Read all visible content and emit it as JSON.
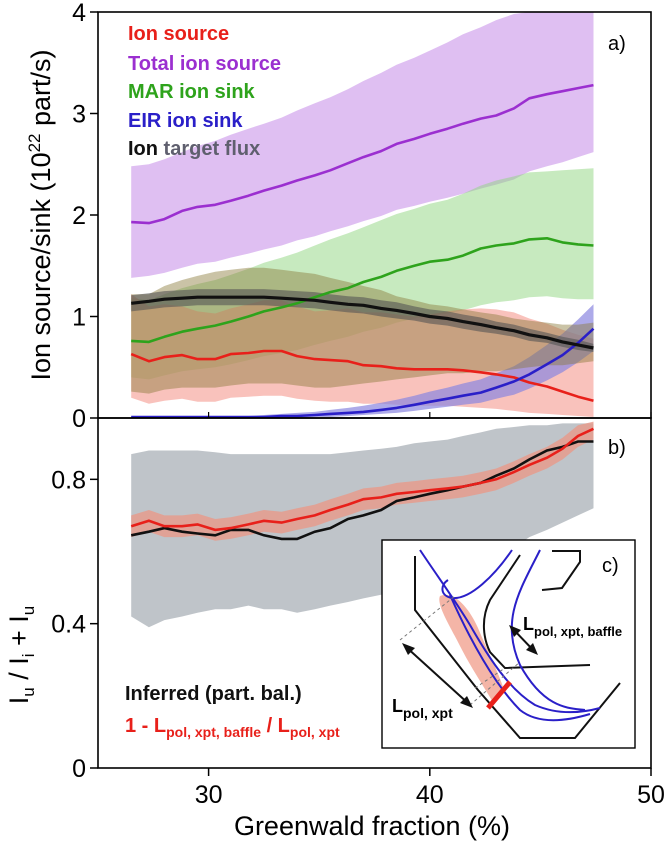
{
  "colors": {
    "ion_source": "#e8201a",
    "total_ion_source": "#9b2fd0",
    "mar_ion_sink": "#2ea31c",
    "eir_ion_sink": "#2a1fc8",
    "ion_target_flux": "#111111",
    "inferred_band": "#b4bac0",
    "model_band": "#e89a8a"
  },
  "xaxis": {
    "label": "Greenwald fraction (%)",
    "ticks": [
      "30",
      "40",
      "50"
    ]
  },
  "panel_a": {
    "tag": "a)",
    "ylabel_main": "Ion source/sink (10",
    "ylabel_exp": "22",
    "ylabel_tail": " part/s)",
    "yticks": [
      "0",
      "1",
      "2",
      "3",
      "4"
    ],
    "legend": [
      {
        "key": "ion_source",
        "label": "Ion source"
      },
      {
        "key": "total_ion_source",
        "label": "Total ion source"
      },
      {
        "key": "mar_ion_sink",
        "label": "MAR ion sink"
      },
      {
        "key": "eir_ion_sink",
        "label": "EIR ion sink"
      }
    ],
    "legend_last_a": "Ion ",
    "legend_last_b": "target flux"
  },
  "panel_b": {
    "tag": "b)",
    "ylabel": {
      "i1": "I",
      "s1": "u",
      "t1": " / I",
      "s2": "i",
      "t2": " + I",
      "s3": "u"
    },
    "yticks": [
      "0",
      "0.4",
      "0.8"
    ],
    "legend_inferred": "Inferred (part. bal.)",
    "legend_model": {
      "a": "1 - L",
      "b": "pol, xpt, baffle",
      "c": " / L",
      "d": "pol, xpt"
    }
  },
  "panel_c": {
    "tag": "c)",
    "label_baffle": {
      "main": "L",
      "sub": "pol, xpt, baffle"
    },
    "label_xpt": {
      "main": "L",
      "sub": "pol, xpt"
    }
  },
  "chart_data": [
    {
      "type": "line",
      "panel": "a)",
      "xlabel": "Greenwald fraction (%)",
      "ylabel": "Ion source/sink (10^22 part/s)",
      "xlim": [
        25,
        50
      ],
      "ylim": [
        0,
        4
      ],
      "x": [
        26.5,
        27.3,
        28,
        28.8,
        29.5,
        30.3,
        31,
        31.8,
        32.5,
        33.3,
        34,
        34.8,
        35.5,
        36.3,
        37,
        37.8,
        38.5,
        39.3,
        40,
        40.8,
        41.5,
        42.3,
        43,
        43.8,
        44.5,
        45.3,
        46,
        46.7,
        47.4
      ],
      "series": [
        {
          "name": "Ion source",
          "key": "ion_source",
          "values": [
            0.63,
            0.56,
            0.6,
            0.62,
            0.58,
            0.58,
            0.63,
            0.64,
            0.66,
            0.66,
            0.61,
            0.58,
            0.57,
            0.56,
            0.52,
            0.51,
            0.49,
            0.48,
            0.48,
            0.48,
            0.47,
            0.45,
            0.43,
            0.4,
            0.35,
            0.31,
            0.26,
            0.21,
            0.17
          ],
          "band_lower": [
            0.2,
            0.14,
            0.17,
            0.19,
            0.16,
            0.16,
            0.2,
            0.21,
            0.22,
            0.22,
            0.19,
            0.17,
            0.16,
            0.16,
            0.14,
            0.14,
            0.13,
            0.12,
            0.12,
            0.12,
            0.11,
            0.1,
            0.09,
            0.07,
            0.05,
            0.04,
            0.03,
            0.02,
            0.01
          ],
          "band_upper": [
            1.22,
            1.1,
            1.12,
            1.1,
            1.05,
            1.03,
            1.08,
            1.12,
            1.16,
            1.16,
            1.1,
            1.05,
            1.06,
            1.08,
            1.04,
            1.04,
            1.02,
            1.0,
            1.02,
            1.05,
            1.07,
            1.08,
            1.07,
            1.04,
            0.98,
            0.93,
            0.87,
            0.82,
            0.78
          ]
        },
        {
          "name": "Total ion source",
          "key": "total_ion_source",
          "values": [
            1.93,
            1.92,
            1.96,
            2.04,
            2.08,
            2.1,
            2.14,
            2.19,
            2.24,
            2.29,
            2.34,
            2.39,
            2.44,
            2.51,
            2.57,
            2.63,
            2.7,
            2.75,
            2.8,
            2.85,
            2.9,
            2.95,
            2.98,
            3.05,
            3.15,
            3.19,
            3.22,
            3.25,
            3.28
          ],
          "band_lower": [
            1.38,
            1.4,
            1.43,
            1.48,
            1.52,
            1.54,
            1.58,
            1.62,
            1.66,
            1.7,
            1.75,
            1.79,
            1.84,
            1.89,
            1.94,
            1.99,
            2.05,
            2.09,
            2.13,
            2.17,
            2.21,
            2.26,
            2.3,
            2.35,
            2.43,
            2.48,
            2.52,
            2.57,
            2.62
          ],
          "band_upper": [
            2.48,
            2.5,
            2.55,
            2.62,
            2.68,
            2.73,
            2.79,
            2.85,
            2.9,
            2.96,
            3.03,
            3.1,
            3.16,
            3.24,
            3.32,
            3.4,
            3.48,
            3.55,
            3.62,
            3.7,
            3.78,
            3.85,
            3.92,
            3.98,
            4.0,
            4.0,
            4.0,
            4.0,
            4.0
          ]
        },
        {
          "name": "MAR ion sink",
          "key": "mar_ion_sink",
          "values": [
            0.76,
            0.75,
            0.8,
            0.85,
            0.88,
            0.91,
            0.95,
            1.0,
            1.05,
            1.09,
            1.13,
            1.19,
            1.24,
            1.28,
            1.34,
            1.39,
            1.45,
            1.5,
            1.54,
            1.56,
            1.6,
            1.67,
            1.7,
            1.72,
            1.76,
            1.77,
            1.73,
            1.71,
            1.7
          ],
          "band_lower": [
            0.4,
            0.38,
            0.42,
            0.46,
            0.48,
            0.5,
            0.53,
            0.57,
            0.61,
            0.64,
            0.67,
            0.72,
            0.76,
            0.8,
            0.85,
            0.89,
            0.94,
            0.98,
            1.01,
            1.03,
            1.06,
            1.11,
            1.14,
            1.16,
            1.19,
            1.2,
            1.18,
            1.17,
            1.17
          ],
          "band_upper": [
            1.18,
            1.16,
            1.22,
            1.28,
            1.32,
            1.36,
            1.41,
            1.47,
            1.53,
            1.58,
            1.63,
            1.7,
            1.76,
            1.82,
            1.88,
            1.95,
            2.01,
            2.06,
            2.11,
            2.15,
            2.21,
            2.29,
            2.34,
            2.38,
            2.42,
            2.43,
            2.44,
            2.45,
            2.46
          ]
        },
        {
          "name": "EIR ion sink",
          "key": "eir_ion_sink",
          "values": [
            0.01,
            0.01,
            0.01,
            0.01,
            0.01,
            0.01,
            0.01,
            0.01,
            0.01,
            0.02,
            0.02,
            0.03,
            0.04,
            0.05,
            0.06,
            0.08,
            0.1,
            0.13,
            0.16,
            0.19,
            0.22,
            0.25,
            0.3,
            0.36,
            0.43,
            0.53,
            0.62,
            0.74,
            0.88
          ],
          "band_lower": [
            0.0,
            0.0,
            0.0,
            0.0,
            0.0,
            0.0,
            0.0,
            0.0,
            0.0,
            0.0,
            0.0,
            0.01,
            0.01,
            0.02,
            0.03,
            0.04,
            0.05,
            0.07,
            0.09,
            0.11,
            0.13,
            0.15,
            0.19,
            0.23,
            0.29,
            0.37,
            0.45,
            0.55,
            0.66
          ],
          "band_upper": [
            0.02,
            0.02,
            0.02,
            0.02,
            0.02,
            0.02,
            0.02,
            0.02,
            0.03,
            0.04,
            0.05,
            0.06,
            0.08,
            0.1,
            0.12,
            0.15,
            0.18,
            0.22,
            0.26,
            0.3,
            0.34,
            0.38,
            0.44,
            0.51,
            0.6,
            0.72,
            0.83,
            0.97,
            1.12
          ]
        },
        {
          "name": "Ion target flux",
          "key": "ion_target_flux",
          "values": [
            1.13,
            1.15,
            1.17,
            1.18,
            1.19,
            1.19,
            1.19,
            1.19,
            1.19,
            1.18,
            1.17,
            1.16,
            1.14,
            1.12,
            1.11,
            1.08,
            1.06,
            1.03,
            1.0,
            0.98,
            0.95,
            0.92,
            0.89,
            0.86,
            0.82,
            0.79,
            0.75,
            0.72,
            0.69
          ],
          "band_lower": [
            1.05,
            1.07,
            1.09,
            1.1,
            1.11,
            1.11,
            1.11,
            1.11,
            1.11,
            1.1,
            1.09,
            1.08,
            1.06,
            1.04,
            1.03,
            1.0,
            0.98,
            0.96,
            0.93,
            0.91,
            0.88,
            0.85,
            0.83,
            0.8,
            0.76,
            0.74,
            0.7,
            0.67,
            0.65
          ],
          "band_upper": [
            1.21,
            1.23,
            1.25,
            1.26,
            1.27,
            1.27,
            1.27,
            1.27,
            1.27,
            1.26,
            1.25,
            1.24,
            1.22,
            1.2,
            1.19,
            1.16,
            1.14,
            1.1,
            1.07,
            1.05,
            1.02,
            0.99,
            0.95,
            0.92,
            0.88,
            0.84,
            0.8,
            0.77,
            0.73
          ],
          "outer_band_lower": [
            0.26,
            0.24,
            0.28,
            0.3,
            0.3,
            0.3,
            0.32,
            0.34,
            0.34,
            0.34,
            0.32,
            0.3,
            0.3,
            0.32,
            0.34,
            0.36,
            0.38,
            0.4,
            0.42,
            0.44,
            0.44,
            0.46,
            0.46,
            0.48,
            0.5,
            0.52,
            0.52,
            0.54,
            0.56
          ],
          "outer_band_upper": [
            1.22,
            1.22,
            1.3,
            1.36,
            1.4,
            1.44,
            1.46,
            1.48,
            1.48,
            1.46,
            1.44,
            1.42,
            1.38,
            1.34,
            1.3,
            1.26,
            1.2,
            1.16,
            1.12,
            1.1,
            1.07,
            1.04,
            1.02,
            0.98,
            0.96,
            0.94,
            0.92,
            0.92,
            0.94
          ]
        }
      ]
    },
    {
      "type": "line",
      "panel": "b)",
      "xlabel": "Greenwald fraction (%)",
      "ylabel": "Iu / Ii + Iu",
      "xlim": [
        25,
        50
      ],
      "ylim": [
        0,
        0.97
      ],
      "x": [
        26.5,
        27.3,
        28,
        28.8,
        29.5,
        30.3,
        31,
        31.8,
        32.5,
        33.3,
        34,
        34.8,
        35.5,
        36.3,
        37,
        37.8,
        38.5,
        39.3,
        40,
        40.8,
        41.5,
        42.3,
        43,
        43.8,
        44.5,
        45.3,
        46,
        46.7,
        47.4
      ],
      "series": [
        {
          "name": "Inferred (part. bal.)",
          "key": "ion_target_flux",
          "values": [
            0.645,
            0.655,
            0.665,
            0.655,
            0.65,
            0.645,
            0.66,
            0.66,
            0.645,
            0.635,
            0.635,
            0.655,
            0.665,
            0.69,
            0.7,
            0.715,
            0.74,
            0.75,
            0.76,
            0.77,
            0.78,
            0.79,
            0.81,
            0.83,
            0.855,
            0.88,
            0.89,
            0.905,
            0.905
          ],
          "band_lower": [
            0.42,
            0.39,
            0.41,
            0.42,
            0.43,
            0.44,
            0.44,
            0.45,
            0.44,
            0.44,
            0.43,
            0.44,
            0.45,
            0.46,
            0.47,
            0.48,
            0.49,
            0.51,
            0.52,
            0.54,
            0.55,
            0.56,
            0.58,
            0.61,
            0.64,
            0.66,
            0.68,
            0.7,
            0.72
          ],
          "band_upper": [
            0.87,
            0.88,
            0.88,
            0.88,
            0.88,
            0.875,
            0.87,
            0.87,
            0.87,
            0.87,
            0.87,
            0.87,
            0.87,
            0.875,
            0.88,
            0.885,
            0.89,
            0.9,
            0.905,
            0.91,
            0.92,
            0.93,
            0.94,
            0.945,
            0.95,
            0.95,
            0.955,
            0.955,
            0.955
          ]
        },
        {
          "name": "1 - Lpol, xpt, baffle / Lpol, xpt",
          "key": "ion_source",
          "values": [
            0.67,
            0.685,
            0.67,
            0.67,
            0.675,
            0.66,
            0.665,
            0.675,
            0.685,
            0.68,
            0.69,
            0.7,
            0.715,
            0.73,
            0.745,
            0.75,
            0.76,
            0.765,
            0.77,
            0.775,
            0.78,
            0.79,
            0.8,
            0.82,
            0.84,
            0.86,
            0.885,
            0.92,
            0.94
          ],
          "band_lower": [
            0.64,
            0.655,
            0.64,
            0.64,
            0.645,
            0.63,
            0.635,
            0.645,
            0.655,
            0.65,
            0.66,
            0.67,
            0.685,
            0.7,
            0.715,
            0.72,
            0.73,
            0.735,
            0.74,
            0.745,
            0.75,
            0.76,
            0.77,
            0.79,
            0.81,
            0.83,
            0.855,
            0.89,
            0.91
          ],
          "band_upper": [
            0.7,
            0.715,
            0.7,
            0.7,
            0.705,
            0.69,
            0.695,
            0.705,
            0.715,
            0.71,
            0.72,
            0.73,
            0.745,
            0.76,
            0.775,
            0.78,
            0.79,
            0.795,
            0.8,
            0.805,
            0.81,
            0.82,
            0.83,
            0.85,
            0.87,
            0.89,
            0.915,
            0.95,
            0.96
          ]
        }
      ]
    }
  ]
}
